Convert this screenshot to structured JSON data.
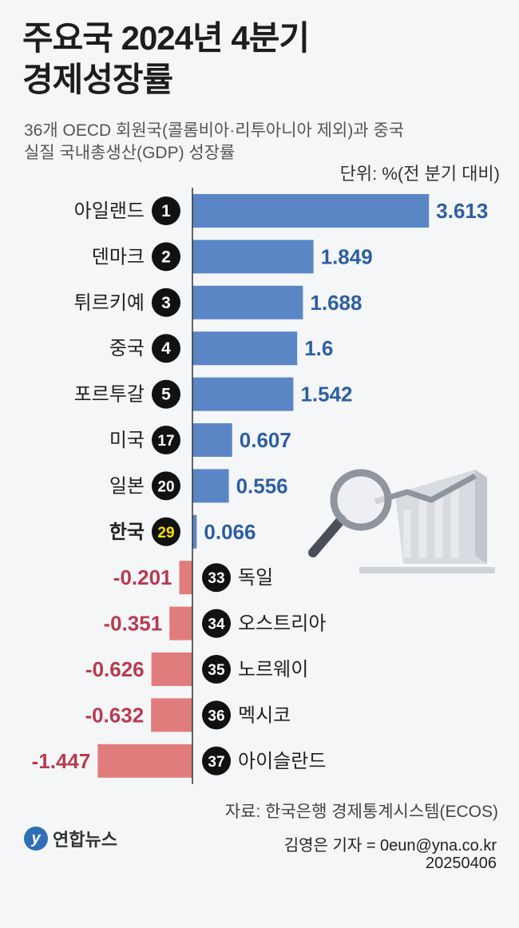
{
  "title_lines": [
    "주요국 2024년 4분기",
    "경제성장률"
  ],
  "subtitle_lines": [
    "36개 OECD 회원국(콜롬비아·리투아니아 제외)과 중국",
    "실질 국내총생산(GDP) 성장률"
  ],
  "unit": "단위: %(전 분기 대비)",
  "source": "자료: 한국은행 경제통계시스템(ECOS)",
  "reporter": "김영은 기자 = 0eun@yna.co.kr",
  "date": "20250406",
  "logo_text": "연합뉴스",
  "colors": {
    "positive": "#5b86c6",
    "negative": "#e07d7c",
    "positive_label": "#2d5ea3",
    "negative_label": "#b83a50",
    "highlight": "#ffe000"
  },
  "chart_data": {
    "type": "bar",
    "orientation": "horizontal",
    "categories": [
      "아일랜드",
      "덴마크",
      "튀르키예",
      "중국",
      "포르투갈",
      "미국",
      "일본",
      "한국",
      "독일",
      "오스트리아",
      "노르웨이",
      "멕시코",
      "아이슬란드"
    ],
    "ranks": [
      "1",
      "2",
      "3",
      "4",
      "5",
      "17",
      "20",
      "29",
      "33",
      "34",
      "35",
      "36",
      "37"
    ],
    "values": [
      3.613,
      1.849,
      1.688,
      1.6,
      1.542,
      0.607,
      0.556,
      0.066,
      -0.201,
      -0.351,
      -0.626,
      -0.632,
      -1.447
    ],
    "value_labels": [
      "3.613",
      "1.849",
      "1.688",
      "1.6",
      "1.542",
      "0.607",
      "0.556",
      "0.066",
      "-0.201",
      "-0.351",
      "-0.626",
      "-0.632",
      "-1.447"
    ],
    "highlight_category": "한국",
    "xlim": [
      -1.6,
      3.8
    ]
  }
}
